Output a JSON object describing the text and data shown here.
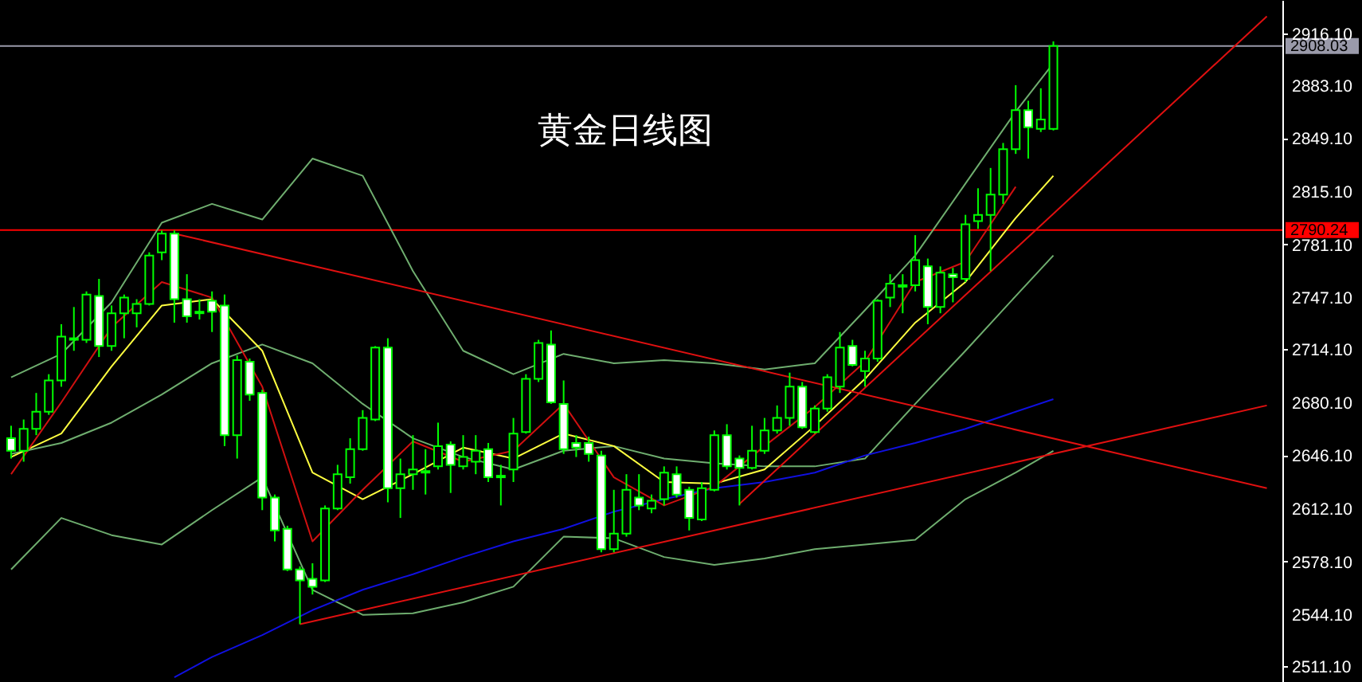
{
  "chart_data": {
    "type": "candlestick",
    "title": "黄金日线图",
    "color": "#00ff00",
    "categories": [
      null,
      null,
      null,
      null,
      null,
      null,
      null,
      null,
      null,
      null,
      null,
      null,
      null,
      null,
      null,
      null,
      null,
      null,
      null,
      null,
      null,
      null,
      null,
      null,
      null,
      null,
      null,
      null,
      null,
      null,
      null,
      null,
      null,
      null,
      null,
      null,
      null,
      null,
      null,
      null,
      null,
      null,
      null,
      null,
      null,
      null,
      null,
      null,
      null,
      null,
      null,
      null,
      null,
      null,
      null,
      null,
      null,
      null,
      null,
      null,
      null,
      null,
      null,
      null,
      null,
      null,
      null,
      null,
      null,
      null,
      null,
      null,
      null,
      null,
      null,
      null,
      null,
      null,
      null,
      null,
      null,
      null,
      null,
      null,
      null,
      null,
      null,
      null,
      null,
      null,
      null,
      null,
      null,
      null,
      null,
      null,
      null,
      null,
      null,
      null,
      null
    ],
    "ohlc": [
      [
        2657,
        2665,
        2644,
        2649
      ],
      [
        2649,
        2669,
        2642,
        2663
      ],
      [
        2663,
        2686,
        2659,
        2674
      ],
      [
        2674,
        2698,
        2672,
        2694
      ],
      [
        2694,
        2730,
        2690,
        2722
      ],
      [
        2720,
        2741,
        2713,
        2721
      ],
      [
        2720,
        2751,
        2718,
        2749
      ],
      [
        2748,
        2759,
        2709,
        2716
      ],
      [
        2716,
        2742,
        2713,
        2737
      ],
      [
        2737,
        2749,
        2721,
        2747
      ],
      [
        2737,
        2746,
        2728,
        2743
      ],
      [
        2743,
        2776,
        2742,
        2774
      ],
      [
        2776,
        2790,
        2771,
        2788
      ],
      [
        2788,
        2790,
        2731,
        2746
      ],
      [
        2746,
        2762,
        2731,
        2735
      ],
      [
        2737,
        2746,
        2733,
        2738
      ],
      [
        2745,
        2751,
        2725,
        2738
      ],
      [
        2742,
        2749,
        2652,
        2659
      ],
      [
        2659,
        2710,
        2644,
        2707
      ],
      [
        2706,
        2708,
        2681,
        2685
      ],
      [
        2686,
        2688,
        2611,
        2619
      ],
      [
        2619,
        2621,
        2591,
        2598
      ],
      [
        2599,
        2601,
        2572,
        2573
      ],
      [
        2573,
        2575,
        2538,
        2566
      ],
      [
        2567,
        2577,
        2557,
        2562
      ],
      [
        2566,
        2614,
        2565,
        2612
      ],
      [
        2612,
        2640,
        2611,
        2634
      ],
      [
        2632,
        2657,
        2628,
        2650
      ],
      [
        2650,
        2675,
        2649,
        2670
      ],
      [
        2669,
        2716,
        2668,
        2715
      ],
      [
        2715,
        2721,
        2616,
        2625
      ],
      [
        2625,
        2644,
        2606,
        2634
      ],
      [
        2634,
        2659,
        2624,
        2637
      ],
      [
        2635,
        2650,
        2621,
        2636
      ],
      [
        2639,
        2667,
        2637,
        2652
      ],
      [
        2653,
        2655,
        2622,
        2640
      ],
      [
        2639,
        2659,
        2637,
        2645
      ],
      [
        2642,
        2659,
        2634,
        2649
      ],
      [
        2650,
        2654,
        2629,
        2632
      ],
      [
        2632,
        2640,
        2614,
        2633
      ],
      [
        2637,
        2670,
        2629,
        2660
      ],
      [
        2661,
        2698,
        2660,
        2695
      ],
      [
        2695,
        2720,
        2693,
        2718
      ],
      [
        2717,
        2726,
        2679,
        2680
      ],
      [
        2679,
        2694,
        2647,
        2650
      ],
      [
        2654,
        2659,
        2645,
        2651
      ],
      [
        2654,
        2658,
        2642,
        2647
      ],
      [
        2646,
        2649,
        2584,
        2586
      ],
      [
        2586,
        2624,
        2584,
        2596
      ],
      [
        2596,
        2634,
        2594,
        2624
      ],
      [
        2619,
        2634,
        2611,
        2614
      ],
      [
        2612,
        2621,
        2609,
        2617
      ],
      [
        2618,
        2639,
        2614,
        2635
      ],
      [
        2634,
        2639,
        2619,
        2621
      ],
      [
        2624,
        2626,
        2598,
        2606
      ],
      [
        2605,
        2629,
        2604,
        2625
      ],
      [
        2624,
        2662,
        2623,
        2659
      ],
      [
        2659,
        2666,
        2637,
        2639
      ],
      [
        2644,
        2646,
        2614,
        2638
      ],
      [
        2638,
        2665,
        2637,
        2649
      ],
      [
        2649,
        2670,
        2647,
        2662
      ],
      [
        2662,
        2678,
        2660,
        2670
      ],
      [
        2670,
        2699,
        2665,
        2690
      ],
      [
        2690,
        2693,
        2663,
        2664
      ],
      [
        2661,
        2678,
        2660,
        2676
      ],
      [
        2676,
        2698,
        2674,
        2696
      ],
      [
        2690,
        2725,
        2686,
        2715
      ],
      [
        2716,
        2720,
        2703,
        2704
      ],
      [
        2700,
        2713,
        2690,
        2708
      ],
      [
        2708,
        2746,
        2706,
        2745
      ],
      [
        2747,
        2762,
        2741,
        2756
      ],
      [
        2754,
        2762,
        2737,
        2755
      ],
      [
        2755,
        2787,
        2751,
        2771
      ],
      [
        2767,
        2772,
        2730,
        2741
      ],
      [
        2741,
        2767,
        2737,
        2763
      ],
      [
        2762,
        2766,
        2744,
        2760
      ],
      [
        2759,
        2800,
        2757,
        2794
      ],
      [
        2796,
        2817,
        2791,
        2800
      ],
      [
        2800,
        2830,
        2764,
        2813
      ],
      [
        2813,
        2846,
        2807,
        2842
      ],
      [
        2842,
        2883,
        2839,
        2867
      ],
      [
        2867,
        2873,
        2836,
        2856
      ],
      [
        2855,
        2881,
        2853,
        2861
      ],
      [
        2855,
        2911,
        2854,
        2908
      ],
      null,
      null,
      null,
      null,
      null,
      null,
      null,
      null,
      null,
      null,
      null,
      null,
      null,
      null,
      null,
      null,
      null
    ],
    "series": [
      {
        "type": "line",
        "color": "#6fae6f",
        "values": [
          2696,
          null,
          null,
          null,
          2711,
          null,
          null,
          null,
          2744,
          null,
          null,
          null,
          2795,
          null,
          null,
          null,
          2807,
          null,
          null,
          null,
          2797,
          null,
          null,
          null,
          2836,
          null,
          null,
          null,
          2825,
          null,
          null,
          null,
          2764,
          null,
          null,
          null,
          2713,
          null,
          null,
          null,
          2698,
          null,
          null,
          null,
          2711,
          null,
          null,
          null,
          2705,
          null,
          null,
          null,
          2707,
          null,
          null,
          null,
          2705,
          null,
          null,
          null,
          2701,
          null,
          null,
          null,
          2705,
          null,
          null,
          null,
          2739,
          null,
          null,
          null,
          2774,
          null,
          null,
          null,
          2820,
          null,
          null,
          null,
          2866,
          null,
          null,
          2897,
          null,
          null,
          null,
          null,
          null,
          null,
          null,
          null,
          null,
          null,
          null,
          null,
          null,
          null,
          null,
          null,
          null
        ]
      },
      {
        "type": "line",
        "color": "#6fae6f",
        "values": [
          2647,
          null,
          null,
          null,
          2654,
          null,
          null,
          null,
          2667,
          null,
          null,
          null,
          2685,
          null,
          null,
          null,
          2705,
          null,
          null,
          null,
          2717,
          null,
          null,
          null,
          2705,
          null,
          null,
          null,
          2679,
          null,
          null,
          null,
          2657,
          null,
          null,
          null,
          2645,
          null,
          null,
          null,
          2637,
          null,
          null,
          null,
          2649,
          null,
          null,
          null,
          2652,
          null,
          null,
          null,
          2644,
          null,
          null,
          null,
          2641,
          null,
          null,
          null,
          2639,
          null,
          null,
          null,
          2639,
          null,
          null,
          null,
          2644,
          null,
          null,
          null,
          2679,
          null,
          null,
          null,
          2713,
          null,
          null,
          null,
          2748,
          null,
          null,
          2774,
          null,
          null,
          null,
          null,
          null,
          null,
          null,
          null,
          null,
          null,
          null,
          null,
          null,
          null,
          null,
          null,
          null
        ]
      },
      {
        "type": "line",
        "color": "#6fae6f",
        "values": [
          2573,
          null,
          null,
          null,
          2606,
          null,
          null,
          null,
          2595,
          null,
          null,
          null,
          2589,
          null,
          null,
          null,
          2611,
          null,
          null,
          null,
          2632,
          null,
          null,
          null,
          2560,
          null,
          null,
          null,
          2544,
          null,
          null,
          null,
          2545,
          null,
          null,
          null,
          2552,
          null,
          null,
          null,
          2562,
          null,
          null,
          null,
          2594,
          null,
          null,
          null,
          2593,
          null,
          null,
          null,
          2581,
          null,
          null,
          null,
          2576,
          null,
          null,
          null,
          2580,
          null,
          null,
          null,
          2586,
          null,
          null,
          null,
          2589,
          null,
          null,
          null,
          2592,
          null,
          null,
          null,
          2618,
          null,
          null,
          null,
          2635,
          null,
          null,
          2649,
          null,
          null,
          null,
          null,
          null,
          null,
          null,
          null,
          null,
          null,
          null,
          null,
          null,
          null,
          null,
          null,
          null
        ]
      },
      {
        "type": "line",
        "color": "#1010e0",
        "values": [
          null,
          null,
          null,
          null,
          null,
          null,
          null,
          null,
          null,
          null,
          null,
          null,
          null,
          2504,
          null,
          null,
          2517,
          null,
          null,
          null,
          2531,
          null,
          null,
          null,
          2547,
          null,
          null,
          null,
          2560,
          null,
          null,
          null,
          2570,
          null,
          null,
          null,
          2581,
          null,
          null,
          null,
          2591,
          null,
          null,
          null,
          2599,
          null,
          null,
          null,
          2610,
          null,
          null,
          null,
          2618,
          null,
          null,
          null,
          2625,
          null,
          null,
          null,
          2629,
          null,
          null,
          null,
          2635,
          null,
          null,
          null,
          2646,
          null,
          null,
          null,
          2654,
          null,
          null,
          null,
          2663,
          null,
          null,
          null,
          2674,
          null,
          null,
          2682,
          null,
          null,
          null,
          null,
          null,
          null,
          null,
          null,
          null,
          null,
          null,
          null,
          null,
          null,
          null,
          null,
          null
        ]
      },
      {
        "type": "line",
        "color": "#ffff40",
        "values": [
          2645,
          null,
          null,
          null,
          2660,
          null,
          null,
          null,
          2703,
          null,
          null,
          null,
          2742,
          null,
          null,
          null,
          2746,
          null,
          null,
          null,
          2713,
          null,
          null,
          null,
          2635,
          null,
          null,
          null,
          2618,
          null,
          null,
          null,
          2634,
          null,
          null,
          null,
          2651,
          null,
          null,
          null,
          2644,
          null,
          null,
          null,
          2660,
          null,
          null,
          null,
          2652,
          null,
          null,
          null,
          2629,
          null,
          null,
          null,
          2628,
          null,
          null,
          null,
          2637,
          null,
          null,
          null,
          2665,
          null,
          null,
          null,
          2695,
          null,
          null,
          null,
          2731,
          null,
          null,
          null,
          2757,
          null,
          null,
          null,
          2798,
          null,
          null,
          2825,
          null,
          null,
          null,
          null,
          null,
          null,
          null,
          null,
          null,
          null,
          null,
          null,
          null,
          null,
          null,
          null,
          null
        ]
      },
      {
        "type": "line",
        "color": "#d01010",
        "values": [
          2634,
          null,
          null,
          null,
          2680,
          null,
          null,
          null,
          2728,
          null,
          null,
          null,
          2757,
          null,
          null,
          null,
          2747,
          null,
          null,
          null,
          2690,
          null,
          null,
          null,
          2591,
          null,
          null,
          null,
          2624,
          null,
          null,
          null,
          2655,
          null,
          null,
          null,
          2642,
          null,
          null,
          null,
          2649,
          null,
          null,
          null,
          2679,
          null,
          null,
          null,
          2632,
          null,
          null,
          null,
          2614,
          null,
          null,
          null,
          2626,
          null,
          null,
          null,
          2652,
          null,
          null,
          null,
          2677,
          null,
          null,
          null,
          2706,
          null,
          null,
          null,
          2757,
          null,
          null,
          null,
          2770,
          null,
          null,
          null,
          2818,
          null,
          null,
          null,
          null,
          null,
          null,
          null,
          null,
          null,
          null,
          null,
          null,
          null,
          null,
          null,
          null,
          null,
          null,
          null,
          null
        ]
      },
      {
        "type": "line",
        "color": "#e01010",
        "values": [
          null,
          null,
          null,
          null,
          null,
          null,
          null,
          null,
          null,
          null,
          null,
          null,
          null,
          2788,
          null,
          null,
          null,
          null,
          null,
          null,
          null,
          null,
          null,
          null,
          null,
          null,
          null,
          null,
          null,
          null,
          null,
          null,
          null,
          null,
          null,
          null,
          null,
          null,
          null,
          null,
          null,
          null,
          null,
          null,
          null,
          null,
          null,
          null,
          null,
          null,
          null,
          null,
          null,
          null,
          null,
          null,
          null,
          null,
          null,
          null,
          null,
          null,
          null,
          null,
          null,
          null,
          null,
          null,
          null,
          null,
          null,
          null,
          null,
          null,
          null,
          null,
          null,
          null,
          null,
          null,
          null,
          null,
          null,
          null,
          null,
          null,
          null,
          null,
          null,
          null,
          null,
          null,
          null,
          null,
          null,
          null,
          null,
          null,
          null,
          null,
          2625
        ]
      },
      {
        "type": "line",
        "color": "#e01010",
        "values": [
          null,
          null,
          null,
          null,
          null,
          null,
          null,
          null,
          null,
          null,
          null,
          null,
          null,
          null,
          null,
          null,
          null,
          null,
          null,
          null,
          null,
          null,
          null,
          2538,
          null,
          null,
          null,
          null,
          null,
          null,
          null,
          null,
          null,
          null,
          null,
          null,
          null,
          null,
          null,
          null,
          null,
          null,
          null,
          null,
          null,
          null,
          null,
          null,
          null,
          null,
          null,
          null,
          null,
          null,
          null,
          null,
          null,
          null,
          null,
          null,
          null,
          null,
          null,
          null,
          null,
          null,
          null,
          null,
          null,
          null,
          null,
          null,
          null,
          null,
          null,
          null,
          null,
          null,
          null,
          null,
          null,
          null,
          null,
          null,
          null,
          null,
          null,
          null,
          null,
          null,
          null,
          null,
          null,
          null,
          null,
          null,
          null,
          null,
          null,
          null,
          2678
        ]
      },
      {
        "type": "line",
        "color": "#e01010",
        "values": [
          null,
          null,
          null,
          null,
          null,
          null,
          null,
          null,
          null,
          null,
          null,
          null,
          null,
          null,
          null,
          null,
          null,
          null,
          null,
          null,
          null,
          null,
          null,
          null,
          null,
          null,
          null,
          null,
          null,
          null,
          null,
          null,
          null,
          null,
          null,
          null,
          null,
          null,
          null,
          null,
          null,
          null,
          null,
          null,
          null,
          null,
          null,
          null,
          null,
          null,
          null,
          null,
          null,
          null,
          null,
          null,
          null,
          null,
          2615,
          null,
          null,
          null,
          null,
          null,
          null,
          null,
          null,
          null,
          null,
          null,
          null,
          null,
          null,
          null,
          null,
          null,
          null,
          null,
          null,
          null,
          null,
          null,
          null,
          null,
          null,
          null,
          null,
          null,
          null,
          null,
          null,
          null,
          null,
          null,
          null,
          null,
          null,
          null,
          null,
          null,
          2927
        ]
      }
    ],
    "ref_lines": [
      {
        "axis": "y",
        "value": 2908.03,
        "label": "2908.03",
        "color": "#9a9aaa"
      },
      {
        "axis": "y",
        "value": 2790.24,
        "label": "2790.24",
        "color": "#ff0000"
      }
    ],
    "ylim": [
      2501,
      2937.5
    ],
    "yticks": [
      {
        "value": 2916.1,
        "label": "2916.10"
      },
      {
        "value": 2883.1,
        "label": "2883.10"
      },
      {
        "value": 2849.1,
        "label": "2849.10"
      },
      {
        "value": 2815.1,
        "label": "2815.10"
      },
      {
        "value": 2781.1,
        "label": "2781.10"
      },
      {
        "value": 2747.1,
        "label": "2747.10"
      },
      {
        "value": 2714.1,
        "label": "2714.10"
      },
      {
        "value": 2680.1,
        "label": "2680.10"
      },
      {
        "value": 2646.1,
        "label": "2646.10"
      },
      {
        "value": 2612.1,
        "label": "2612.10"
      },
      {
        "value": 2578.1,
        "label": "2578.10"
      },
      {
        "value": 2544.1,
        "label": "2544.10"
      },
      {
        "value": 2511.1,
        "label": "2511.10"
      }
    ]
  }
}
